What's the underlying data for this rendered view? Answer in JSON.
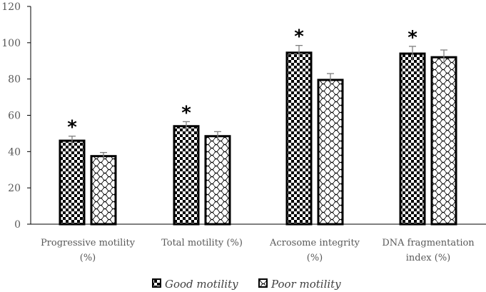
{
  "chart_data": {
    "type": "bar",
    "title": "",
    "xlabel": "",
    "ylabel": "",
    "ylim": [
      0,
      120
    ],
    "yticks": [
      0,
      20,
      40,
      60,
      80,
      100,
      120
    ],
    "grid": false,
    "categories": [
      [
        "Progressive motility",
        "(%)"
      ],
      [
        "Total motility (%)"
      ],
      [
        "Acrosome integrity",
        "(%)"
      ],
      [
        "DNA fragmentation",
        "index (%)"
      ]
    ],
    "series": [
      {
        "name": "Good motility",
        "pattern": "checkerboard",
        "values": [
          46,
          54,
          94.5,
          94
        ],
        "errors": [
          2.5,
          2.5,
          4,
          4
        ],
        "significance": [
          "*",
          "*",
          "*",
          "*"
        ]
      },
      {
        "name": "Poor motility",
        "pattern": "scales",
        "values": [
          37.5,
          48.5,
          79.5,
          92
        ],
        "errors": [
          2,
          2.5,
          3.5,
          4
        ],
        "significance": [
          "",
          "",
          "",
          ""
        ]
      }
    ],
    "legend_position": "bottom-center"
  }
}
